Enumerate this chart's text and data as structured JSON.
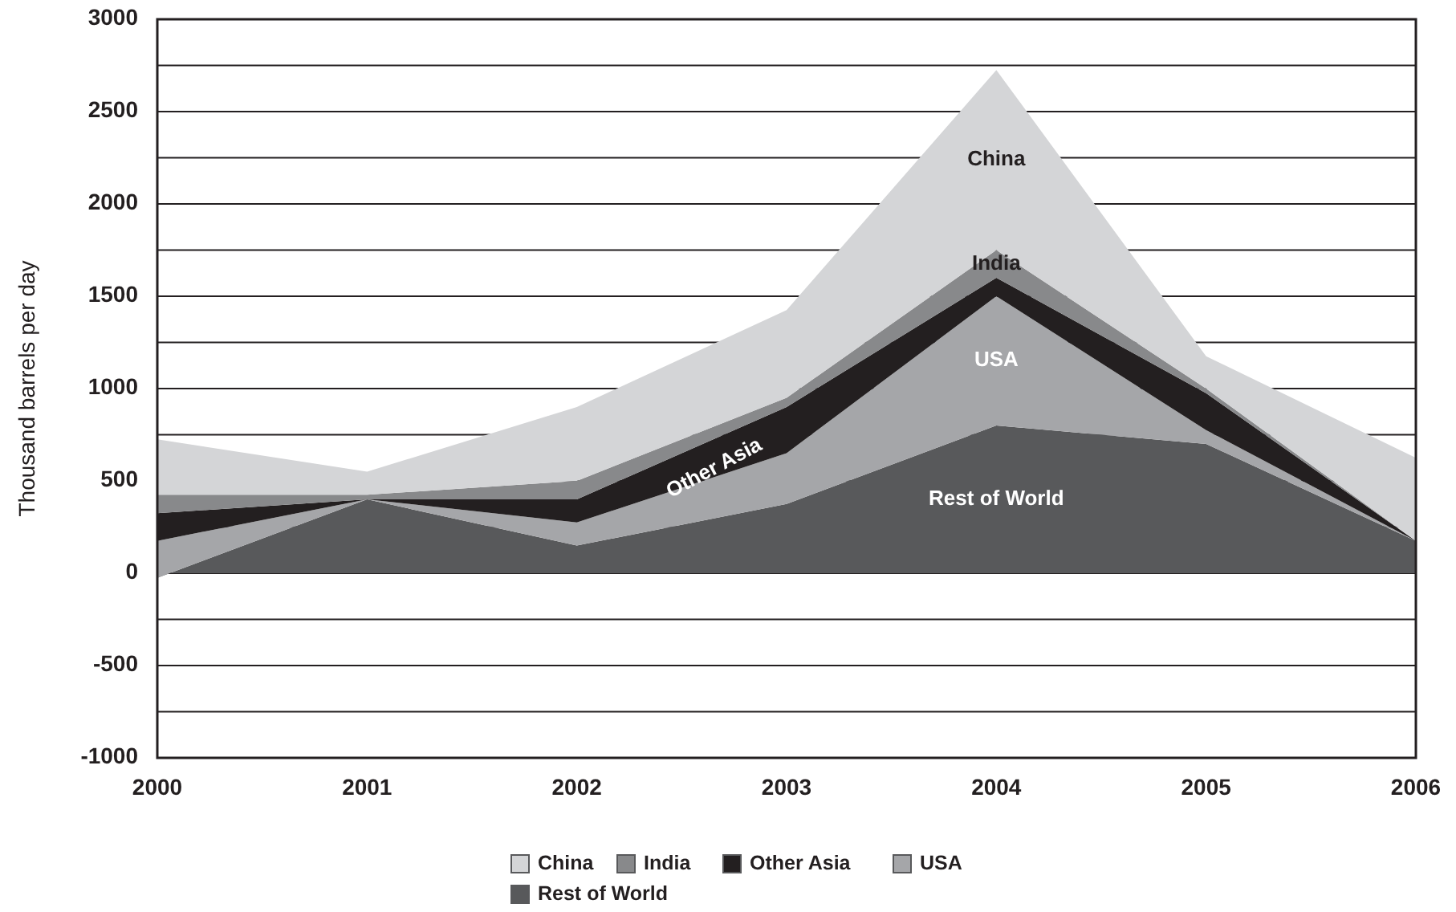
{
  "chart_data": {
    "type": "area",
    "stacked": true,
    "ylabel": "Thousand barrels per day",
    "x": [
      2000,
      2001,
      2002,
      2003,
      2004,
      2005,
      2006
    ],
    "xlim": [
      2000,
      2006
    ],
    "xticks": [
      2000,
      2001,
      2002,
      2003,
      2004,
      2005,
      2006
    ],
    "ylim": [
      -1000,
      3000
    ],
    "yticks": [
      -1000,
      {
        "value": -750,
        "label": null
      },
      -500,
      {
        "value": -250,
        "label": null
      },
      0,
      {
        "value": 250,
        "label": null
      },
      500,
      {
        "value": 750,
        "label": null
      },
      1000,
      {
        "value": 1250,
        "label": null
      },
      1500,
      {
        "value": 1750,
        "label": null
      },
      2000,
      {
        "value": 2250,
        "label": null
      },
      2500,
      {
        "value": 2750,
        "label": null
      },
      3000
    ],
    "grid": "y",
    "legend": "bottom",
    "series": [
      {
        "name": "Rest of World",
        "color": "#58595b",
        "values": [
          -25,
          400,
          150,
          375,
          800,
          700,
          175
        ]
      },
      {
        "name": "USA",
        "color": "#a5a6a9",
        "values": [
          200,
          0,
          125,
          275,
          700,
          75,
          0
        ]
      },
      {
        "name": "Other Asia",
        "color": "#231f20",
        "values": [
          150,
          0,
          125,
          250,
          100,
          200,
          0
        ]
      },
      {
        "name": "India",
        "color": "#88898b",
        "values": [
          100,
          25,
          100,
          50,
          150,
          25,
          0
        ]
      },
      {
        "name": "China",
        "color": "#d4d5d7",
        "values": [
          300,
          125,
          400,
          475,
          975,
          175,
          450
        ]
      }
    ]
  }
}
